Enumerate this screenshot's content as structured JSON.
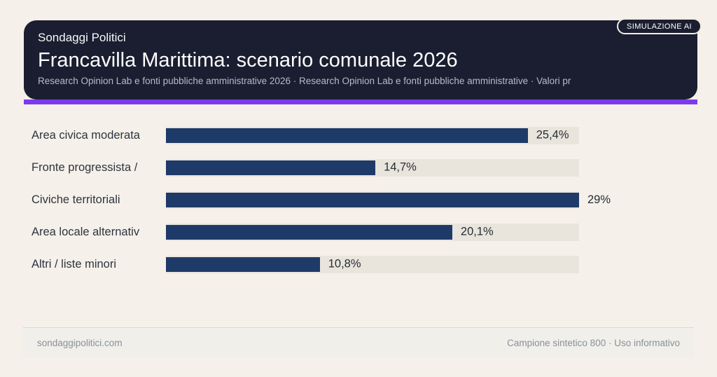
{
  "header": {
    "brand": "Sondaggi Politici",
    "title": "Francavilla Marittima: scenario comunale 2026",
    "subtitle": "Research Opinion Lab e fonti pubbliche amministrative 2026 · Research Opinion Lab e fonti pubbliche amministrative · Valori pr",
    "badge": "SIMULAZIONE AI"
  },
  "chart_data": {
    "type": "bar",
    "orientation": "horizontal",
    "title": "Francavilla Marittima: scenario comunale 2026",
    "categories": [
      "Area civica moderata",
      "Fronte progressista /",
      "Civiche territoriali",
      "Area locale alternativ",
      "Altri / liste minori"
    ],
    "values": [
      25.4,
      14.7,
      29,
      20.1,
      10.8
    ],
    "value_labels": [
      "25,4%",
      "14,7%",
      "29%",
      "20,1%",
      "10,8%"
    ],
    "xlim": [
      0,
      29
    ],
    "grid": false,
    "legend": false,
    "bar_color": "#1e3a68",
    "track_color": "#e9e4dc"
  },
  "footer": {
    "left": "sondaggipolitici.com",
    "right": "Campione sintetico 800 · Uso informativo"
  },
  "colors": {
    "background": "#f5f0e9",
    "card": "#1b1e30",
    "accent": "#7c3aed",
    "bar": "#1e3a68",
    "track": "#e9e4dc",
    "label_text": "#2f3440",
    "footer_text": "#8a909a"
  }
}
